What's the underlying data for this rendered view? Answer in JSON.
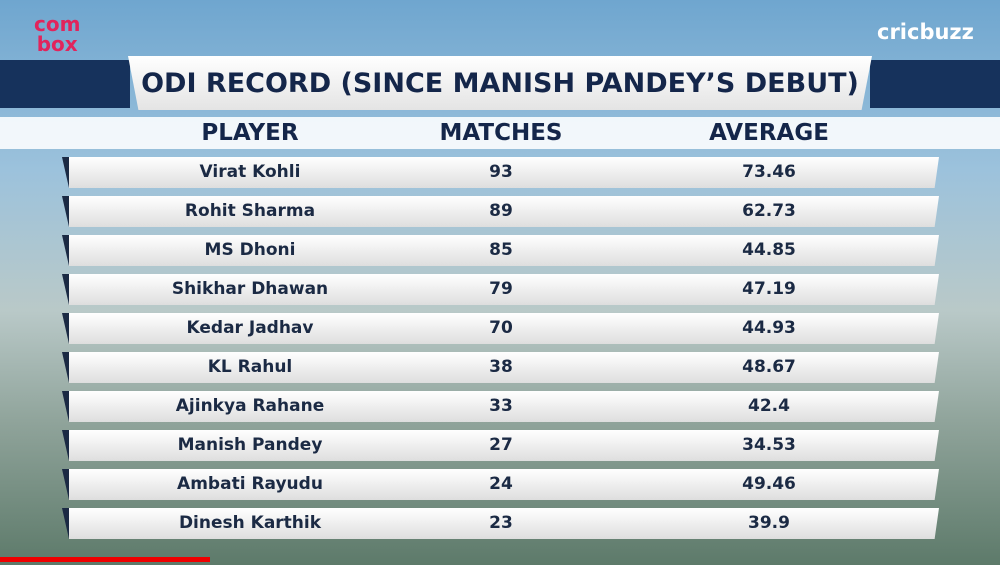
{
  "logo_left": [
    "com",
    "box"
  ],
  "logo_right": "cricbuzz",
  "header": {
    "title": "ODI RECORD (SINCE MANISH PANDEY’S DEBUT)"
  },
  "table": {
    "columns": [
      "PLAYER",
      "MATCHES",
      "AVERAGE"
    ],
    "rows": [
      [
        "Virat Kohli",
        93,
        73.46
      ],
      [
        "Rohit Sharma",
        89,
        62.73
      ],
      [
        "MS Dhoni",
        85,
        44.85
      ],
      [
        "Shikhar Dhawan",
        79,
        47.19
      ],
      [
        "Kedar Jadhav",
        70,
        44.93
      ],
      [
        "KL Rahul",
        38,
        48.67
      ],
      [
        "Ajinkya Rahane",
        33,
        42.4
      ],
      [
        "Manish Pandey",
        27,
        34.53
      ],
      [
        "Ambati Rayudu",
        24,
        49.46
      ],
      [
        "Dinesh Karthik",
        23,
        39.9
      ]
    ]
  }
}
